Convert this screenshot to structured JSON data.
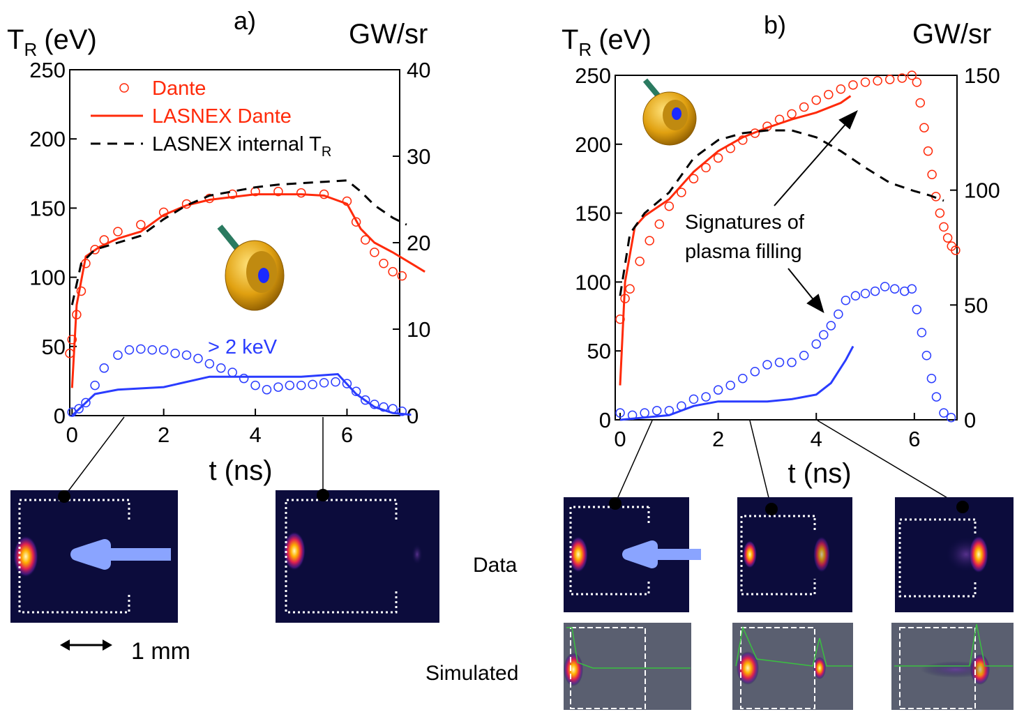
{
  "chart_data": [
    {
      "type": "line",
      "title": "a)",
      "xlabel": "t (ns)",
      "ylabel": "T",
      "ylabel_sub": "R",
      "ylabel_rest": "(eV)",
      "y2label": "GW/sr",
      "xlim": [
        -0.05,
        7.15
      ],
      "xticks": [
        0,
        2,
        4,
        6
      ],
      "ylim": [
        0,
        250
      ],
      "yticks": [
        0,
        50,
        100,
        150,
        200,
        250
      ],
      "y2lim": [
        0,
        40
      ],
      "y2ticks": [
        0,
        10,
        20,
        30,
        40
      ],
      "legend": "upper left",
      "annotations": [
        {
          "text": "> 2 keV",
          "color": "#2a3cff"
        }
      ],
      "series": [
        {
          "name": "Dante",
          "color": "#ff2a0a",
          "marker": "circle",
          "x": [
            -0.05,
            0,
            0.1,
            0.2,
            0.3,
            0.5,
            0.7,
            1,
            1.5,
            2,
            2.5,
            3,
            3.5,
            4,
            4.5,
            5,
            5.5,
            6,
            6.2,
            6.4,
            6.6,
            6.8,
            7,
            7.2
          ],
          "values": [
            45,
            55,
            73,
            90,
            110,
            120,
            127,
            133,
            138,
            147,
            153,
            157,
            160,
            162,
            162,
            161,
            160,
            155,
            140,
            127,
            118,
            110,
            104,
            101
          ]
        },
        {
          "name": "LASNEX Dante",
          "color": "#ff2a0a",
          "x": [
            0,
            0.1,
            0.3,
            0.6,
            1,
            1.5,
            2,
            2.5,
            3,
            3.5,
            4,
            4.5,
            5,
            5.5,
            6,
            6.3,
            6.6,
            7,
            7.5,
            7.7
          ],
          "values": [
            20,
            80,
            115,
            122,
            128,
            133,
            145,
            152,
            156,
            158,
            160,
            160,
            160,
            159,
            153,
            135,
            125,
            118,
            108,
            104
          ]
        },
        {
          "name": "LASNEX internal T",
          "name_sub": "R",
          "color": "#000000",
          "dash": true,
          "x": [
            0,
            0.2,
            0.5,
            1,
            1.5,
            2,
            2.5,
            3,
            3.5,
            4,
            4.5,
            5,
            5.5,
            6,
            6.3,
            6.6,
            7,
            7.3
          ],
          "values": [
            80,
            110,
            120,
            125,
            130,
            142,
            152,
            159,
            162,
            165,
            167,
            168,
            169,
            170,
            162,
            152,
            143,
            138
          ]
        },
        {
          "color": "#2a3cff",
          "marker": "circle",
          "axis": "y2",
          "x": [
            0,
            0.15,
            0.3,
            0.5,
            0.7,
            1,
            1.25,
            1.5,
            1.75,
            2,
            2.25,
            2.5,
            2.75,
            3,
            3.25,
            3.5,
            3.75,
            4,
            4.25,
            4.5,
            4.75,
            5,
            5.25,
            5.5,
            5.75,
            6,
            6.2,
            6.4,
            6.6,
            6.8,
            7,
            7.2
          ],
          "values": [
            0.4,
            0.8,
            1.5,
            3.5,
            5.5,
            7,
            7.6,
            7.7,
            7.6,
            7.6,
            7.2,
            7,
            6.6,
            6,
            5.5,
            5,
            4.3,
            3.5,
            3,
            3.3,
            3.5,
            3.5,
            3.6,
            3.8,
            3.9,
            3.7,
            2.8,
            1.8,
            1.3,
            1,
            0.8,
            0.5
          ]
        },
        {
          "color": "#2a3cff",
          "axis": "y2",
          "x": [
            0,
            0.5,
            1,
            2,
            3,
            4,
            5,
            5.8,
            6.2,
            6.6,
            7,
            7.4
          ],
          "values": [
            0,
            2.5,
            3,
            3.3,
            4.5,
            4.5,
            4.5,
            4.8,
            2.5,
            1,
            0.3,
            0.1
          ]
        }
      ]
    },
    {
      "type": "line",
      "title": "b)",
      "xlabel": "t (ns)",
      "ylabel": "T",
      "ylabel_sub": "R",
      "ylabel_rest": "(eV)",
      "y2label": "GW/sr",
      "xlim": [
        -0.1,
        6.87
      ],
      "xticks": [
        0,
        2,
        4,
        6
      ],
      "ylim": [
        0,
        250
      ],
      "yticks": [
        0,
        50,
        100,
        150,
        200,
        250
      ],
      "y2lim": [
        0,
        150
      ],
      "y2ticks": [
        0,
        50,
        100,
        150
      ],
      "annotations": [
        {
          "text": "Signatures of",
          "color": "#000000"
        },
        {
          "text": "plasma filling",
          "color": "#000000"
        }
      ],
      "series": [
        {
          "color": "#ff2a0a",
          "marker": "circle",
          "x": [
            0,
            0.1,
            0.2,
            0.4,
            0.6,
            0.8,
            1,
            1.25,
            1.5,
            1.75,
            2,
            2.25,
            2.5,
            2.75,
            3,
            3.25,
            3.5,
            3.75,
            4,
            4.25,
            4.5,
            4.75,
            5,
            5.25,
            5.5,
            5.75,
            5.95,
            6.05,
            6.12,
            6.2,
            6.28,
            6.36,
            6.44,
            6.52,
            6.6,
            6.68,
            6.76,
            6.84
          ],
          "values": [
            73,
            88,
            95,
            115,
            130,
            142,
            155,
            165,
            175,
            183,
            190,
            197,
            203,
            208,
            213,
            218,
            222,
            227,
            232,
            236,
            240,
            243,
            245,
            246,
            247,
            248,
            250,
            245,
            230,
            212,
            195,
            178,
            162,
            150,
            140,
            132,
            126,
            123
          ]
        },
        {
          "color": "#ff2a0a",
          "x": [
            0,
            0.1,
            0.3,
            0.5,
            1,
            1.5,
            2,
            2.5,
            3,
            3.5,
            4,
            4.5,
            4.7
          ],
          "values": [
            25,
            100,
            140,
            148,
            160,
            180,
            195,
            205,
            212,
            218,
            223,
            230,
            235
          ]
        },
        {
          "color": "#000000",
          "dash": true,
          "x": [
            0,
            0.2,
            0.5,
            1,
            1.5,
            2,
            2.5,
            3,
            3.5,
            4,
            4.5,
            5,
            5.5,
            6,
            6.3,
            6.6
          ],
          "values": [
            90,
            135,
            150,
            165,
            190,
            203,
            208,
            210,
            210,
            205,
            195,
            183,
            172,
            166,
            163,
            159
          ]
        },
        {
          "color": "#2a3cff",
          "marker": "circle",
          "axis": "y2",
          "x": [
            0,
            0.25,
            0.5,
            0.75,
            1,
            1.25,
            1.5,
            1.75,
            2,
            2.25,
            2.5,
            2.75,
            3,
            3.25,
            3.5,
            3.75,
            4,
            4.15,
            4.3,
            4.45,
            4.6,
            4.8,
            5,
            5.2,
            5.4,
            5.6,
            5.8,
            5.95,
            6.05,
            6.15,
            6.25,
            6.35,
            6.45,
            6.6,
            6.75
          ],
          "values": [
            3,
            2,
            3,
            4,
            4,
            6,
            9,
            10,
            13,
            15,
            18,
            21,
            24,
            25,
            25,
            28,
            33,
            37,
            41,
            46,
            52,
            54,
            55,
            56,
            58,
            57,
            56,
            57,
            48,
            38,
            28,
            18,
            10,
            3,
            1
          ]
        },
        {
          "color": "#2a3cff",
          "axis": "y2",
          "x": [
            0,
            1,
            1.5,
            2,
            2.5,
            3,
            3.5,
            4,
            4.3,
            4.6,
            4.75
          ],
          "values": [
            0,
            2,
            6,
            8,
            8,
            8,
            9,
            11,
            16,
            26,
            32
          ]
        }
      ]
    }
  ],
  "figure_labels": {
    "scale": "1 mm",
    "data_row": "Data",
    "simulated_row": "Simulated"
  }
}
